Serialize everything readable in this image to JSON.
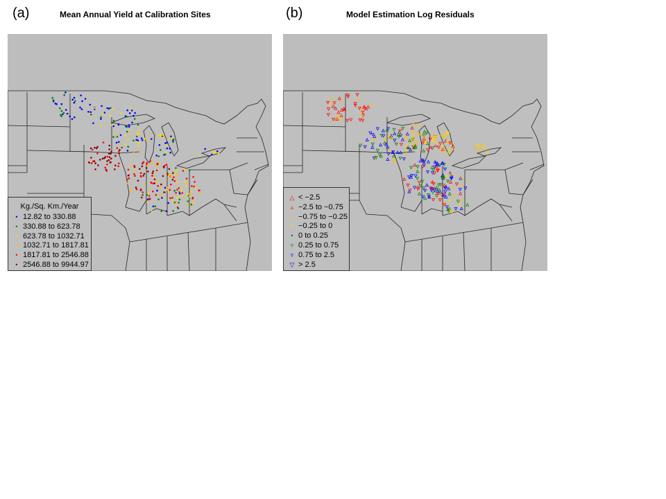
{
  "panel_a": {
    "letter": "(a)",
    "title": "Mean Annual Yield at Calibration Sites",
    "legend": {
      "title": "Kg./Sq. Km./Year",
      "items": [
        {
          "label": "12.82 to 330.88",
          "color": "#0000ff",
          "symbol": "•"
        },
        {
          "label": "330.88 to 623.78",
          "color": "#008000",
          "symbol": "•"
        },
        {
          "label": "623.78 to 1032.71",
          "color": "#ffd700",
          "symbol": "•"
        },
        {
          "label": "1032.71 to 1817.81",
          "color": "#ffc000",
          "symbol": "•"
        },
        {
          "label": "1817.81 to 2546.88",
          "color": "#ff0000",
          "symbol": "•"
        },
        {
          "label": "2546.88 to 9944.97",
          "color": "#8b0000",
          "symbol": "•"
        }
      ]
    }
  },
  "panel_b": {
    "letter": "(b)",
    "title": "Model Estimation Log Residuals",
    "legend": {
      "items": [
        {
          "label": "< −2.5",
          "color": "#ff0000",
          "symbol": "△"
        },
        {
          "label": "−2.5 to −0.75",
          "color": "#ff0000",
          "symbol": "▵"
        },
        {
          "label": "−0.75 to −0.25",
          "color": "#ffc000",
          "symbol": "▵"
        },
        {
          "label": "−0.25 to 0",
          "color": "#ffd700",
          "symbol": "•"
        },
        {
          "label": "0 to 0.25",
          "color": "#008000",
          "symbol": "•"
        },
        {
          "label": "0.25 to 0.75",
          "color": "#008000",
          "symbol": "▿"
        },
        {
          "label": "0.75 to 2.5",
          "color": "#0000ff",
          "symbol": "▿"
        },
        {
          "label": "> 2.5",
          "color": "#0000ff",
          "symbol": "▽"
        }
      ]
    }
  },
  "colors": {
    "map_background": "#bdbdbd",
    "land": "#bfbfbf",
    "borders": "#222222"
  }
}
